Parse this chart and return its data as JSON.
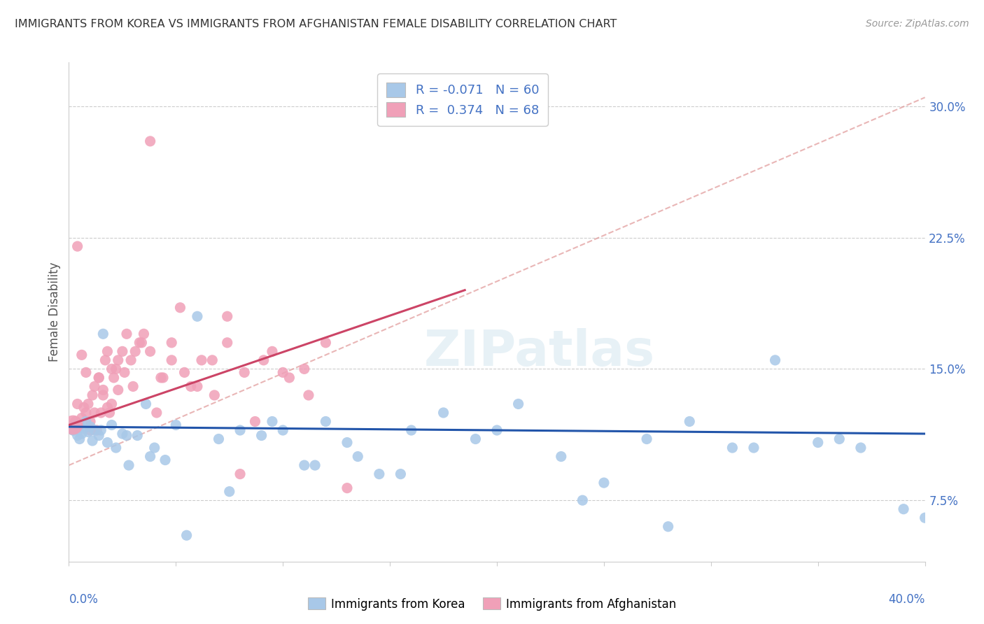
{
  "title": "IMMIGRANTS FROM KOREA VS IMMIGRANTS FROM AFGHANISTAN FEMALE DISABILITY CORRELATION CHART",
  "source": "Source: ZipAtlas.com",
  "ylabel": "Female Disability",
  "y_tick_labels": [
    "7.5%",
    "15.0%",
    "22.5%",
    "30.0%"
  ],
  "y_tick_values": [
    0.075,
    0.15,
    0.225,
    0.3
  ],
  "xlim": [
    0.0,
    0.4
  ],
  "ylim": [
    0.04,
    0.325
  ],
  "korea_color": "#a8c8e8",
  "korea_line_color": "#2255aa",
  "afghanistan_color": "#f0a0b8",
  "afghanistan_line_color": "#cc4466",
  "diag_line_color": "#e09898",
  "korea_R": -0.071,
  "korea_N": 60,
  "afghanistan_R": 0.374,
  "afghanistan_N": 68,
  "legend_label_korea": "Immigrants from Korea",
  "legend_label_afghanistan": "Immigrants from Afghanistan",
  "korea_scatter_x": [
    0.002,
    0.003,
    0.004,
    0.005,
    0.006,
    0.007,
    0.008,
    0.009,
    0.01,
    0.011,
    0.012,
    0.014,
    0.016,
    0.018,
    0.02,
    0.022,
    0.025,
    0.028,
    0.032,
    0.036,
    0.04,
    0.045,
    0.05,
    0.06,
    0.07,
    0.08,
    0.09,
    0.1,
    0.11,
    0.12,
    0.13,
    0.145,
    0.16,
    0.175,
    0.19,
    0.21,
    0.23,
    0.25,
    0.27,
    0.29,
    0.31,
    0.33,
    0.35,
    0.37,
    0.39,
    0.015,
    0.027,
    0.055,
    0.075,
    0.095,
    0.115,
    0.135,
    0.155,
    0.2,
    0.24,
    0.28,
    0.32,
    0.36,
    0.4,
    0.038
  ],
  "korea_scatter_y": [
    0.115,
    0.118,
    0.112,
    0.11,
    0.113,
    0.116,
    0.12,
    0.114,
    0.117,
    0.109,
    0.115,
    0.112,
    0.17,
    0.108,
    0.118,
    0.105,
    0.113,
    0.095,
    0.112,
    0.13,
    0.105,
    0.098,
    0.118,
    0.18,
    0.11,
    0.115,
    0.112,
    0.115,
    0.095,
    0.12,
    0.108,
    0.09,
    0.115,
    0.125,
    0.11,
    0.13,
    0.1,
    0.085,
    0.11,
    0.12,
    0.105,
    0.155,
    0.108,
    0.105,
    0.07,
    0.115,
    0.112,
    0.055,
    0.08,
    0.12,
    0.095,
    0.1,
    0.09,
    0.115,
    0.075,
    0.06,
    0.105,
    0.11,
    0.065,
    0.1
  ],
  "afghanistan_scatter_x": [
    0.002,
    0.003,
    0.004,
    0.005,
    0.006,
    0.007,
    0.008,
    0.009,
    0.01,
    0.011,
    0.012,
    0.013,
    0.014,
    0.015,
    0.016,
    0.017,
    0.018,
    0.019,
    0.02,
    0.021,
    0.022,
    0.023,
    0.025,
    0.027,
    0.029,
    0.031,
    0.033,
    0.035,
    0.038,
    0.041,
    0.044,
    0.048,
    0.052,
    0.057,
    0.062,
    0.068,
    0.074,
    0.08,
    0.087,
    0.095,
    0.103,
    0.112,
    0.004,
    0.006,
    0.008,
    0.01,
    0.012,
    0.014,
    0.016,
    0.018,
    0.02,
    0.023,
    0.026,
    0.03,
    0.034,
    0.038,
    0.043,
    0.048,
    0.054,
    0.06,
    0.067,
    0.074,
    0.082,
    0.091,
    0.1,
    0.11,
    0.12,
    0.13
  ],
  "afghanistan_scatter_y": [
    0.115,
    0.12,
    0.13,
    0.118,
    0.122,
    0.128,
    0.125,
    0.13,
    0.12,
    0.135,
    0.14,
    0.115,
    0.145,
    0.125,
    0.138,
    0.155,
    0.16,
    0.125,
    0.13,
    0.145,
    0.15,
    0.138,
    0.16,
    0.17,
    0.155,
    0.16,
    0.165,
    0.17,
    0.28,
    0.125,
    0.145,
    0.165,
    0.185,
    0.14,
    0.155,
    0.135,
    0.18,
    0.09,
    0.12,
    0.16,
    0.145,
    0.135,
    0.22,
    0.158,
    0.148,
    0.115,
    0.125,
    0.145,
    0.135,
    0.128,
    0.15,
    0.155,
    0.148,
    0.14,
    0.165,
    0.16,
    0.145,
    0.155,
    0.148,
    0.14,
    0.155,
    0.165,
    0.148,
    0.155,
    0.148,
    0.15,
    0.165,
    0.082
  ]
}
